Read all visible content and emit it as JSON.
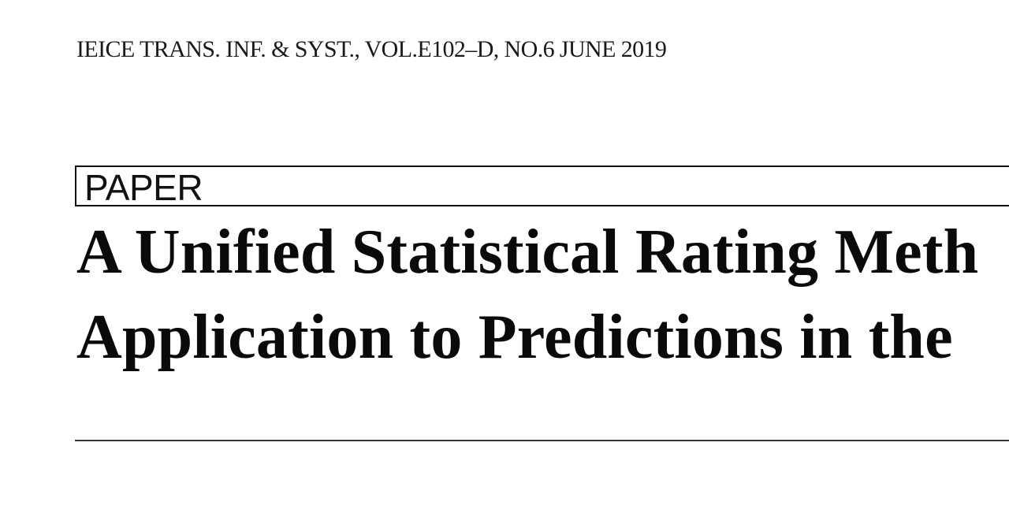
{
  "journal": {
    "header": "IEICE TRANS. INF. & SYST., VOL.E102–D, NO.6 JUNE 2019"
  },
  "paper": {
    "category_label": "PAPER",
    "title_line_1": "A Unified Statistical Rating Meth",
    "title_line_2": "Application to Predictions in the"
  }
}
